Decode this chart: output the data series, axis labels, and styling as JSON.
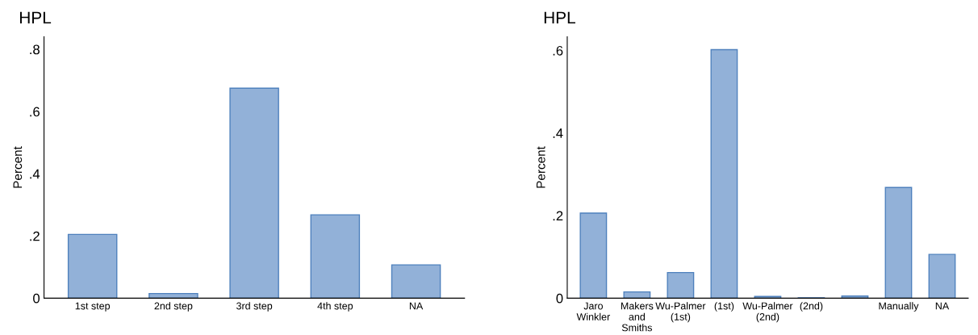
{
  "chart_data": [
    {
      "type": "bar",
      "title": "HPL",
      "ylabel": "Percent",
      "categories": [
        "1st step",
        "2nd step",
        "3rd step",
        "4th step",
        "NA"
      ],
      "values": [
        0.205,
        0.015,
        0.675,
        0.268,
        0.107
      ],
      "color": "#92b1d8",
      "ylim": [
        0,
        0.84
      ],
      "yticks": [
        {
          "value": 0,
          "label": "0"
        },
        {
          "value": 0.2,
          "label": ".2"
        },
        {
          "value": 0.4,
          "label": ".4"
        },
        {
          "value": 0.6,
          "label": ".6"
        },
        {
          "value": 0.8,
          "label": ".8"
        }
      ],
      "grid": false
    },
    {
      "type": "bar",
      "title": "HPL",
      "ylabel": "Percent",
      "categories": [
        "Jaro\nWinkler",
        "Makers\nand\nSmiths",
        "Wu-Palmer\n(1st)",
        "(1st)",
        "Wu-Palmer\n(2nd)",
        "(2nd)",
        null,
        "Manually",
        "NA"
      ],
      "values": [
        0.206,
        0.015,
        0.062,
        0.602,
        0.004,
        0.001,
        0.005,
        0.268,
        0.106
      ],
      "color": "#92b1d8",
      "ylim": [
        0,
        0.633
      ],
      "yticks": [
        {
          "value": 0,
          "label": "0"
        },
        {
          "value": 0.2,
          "label": ".2"
        },
        {
          "value": 0.4,
          "label": ".4"
        },
        {
          "value": 0.6,
          "label": ".6"
        }
      ],
      "grid": false
    }
  ]
}
